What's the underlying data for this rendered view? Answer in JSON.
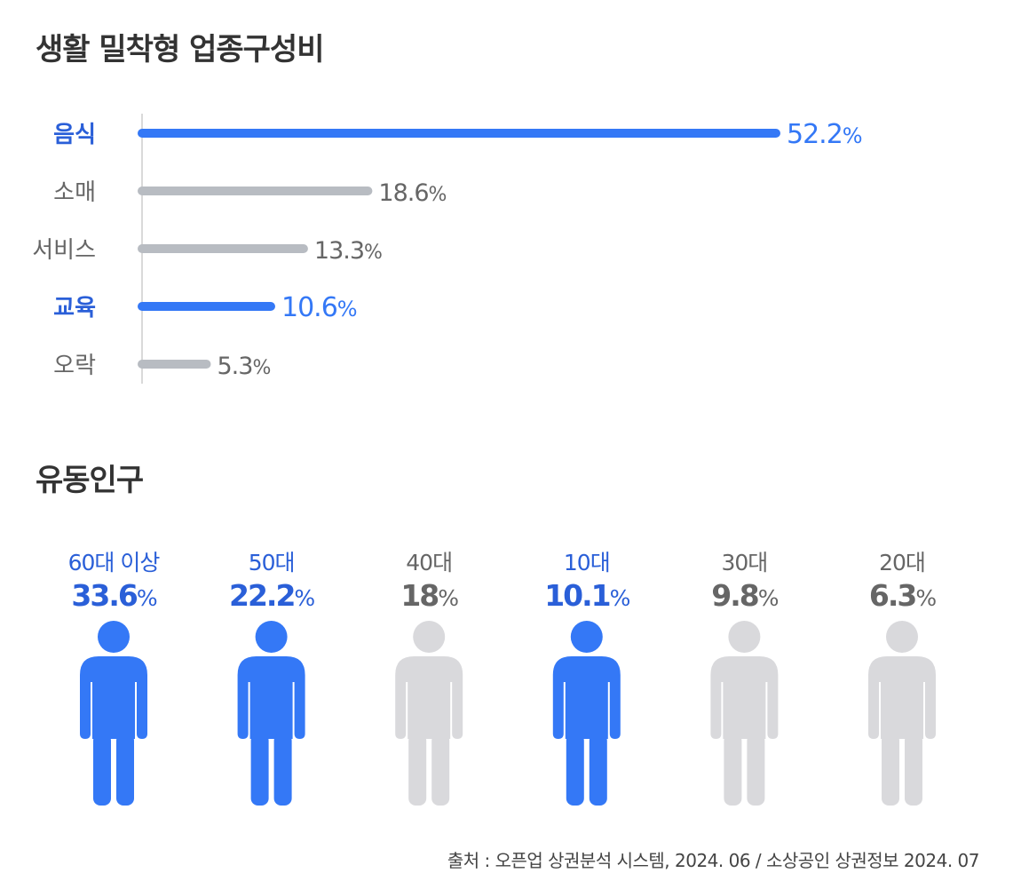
{
  "sections": {
    "industry_title": "생활 밀착형 업종구성비",
    "population_title": "유동인구"
  },
  "source": "출처 : 오픈업 상권분석 시스템, 2024. 06 / 소상공인 상권정보 2024. 07",
  "colors": {
    "highlight": "#3478f6",
    "highlight_label": "#2a5fd8",
    "muted_bar": "#b8bcc2",
    "muted_text": "#666666",
    "muted_person": "#d9d9dc",
    "axis": "#d9d9d9"
  },
  "chart_data": [
    {
      "type": "bar",
      "orientation": "horizontal",
      "title": "생활 밀착형 업종구성비",
      "categories": [
        "음식",
        "소매",
        "서비스",
        "교육",
        "오락"
      ],
      "values": [
        52.2,
        18.6,
        13.3,
        10.6,
        5.3
      ],
      "value_labels": [
        "52.2",
        "18.6",
        "13.3",
        "10.6",
        "5.3"
      ],
      "unit": "%",
      "highlighted": [
        true,
        false,
        false,
        true,
        false
      ],
      "xlim": [
        0,
        52.2
      ]
    },
    {
      "type": "bar",
      "style": "pictogram",
      "title": "유동인구",
      "categories": [
        "60대 이상",
        "50대",
        "40대",
        "10대",
        "30대",
        "20대"
      ],
      "values": [
        33.6,
        22.2,
        18,
        10.1,
        9.8,
        6.3
      ],
      "value_labels": [
        "33.6",
        "22.2",
        "18",
        "10.1",
        "9.8",
        "6.3"
      ],
      "unit": "%",
      "highlighted": [
        true,
        true,
        false,
        true,
        false,
        false
      ]
    }
  ]
}
